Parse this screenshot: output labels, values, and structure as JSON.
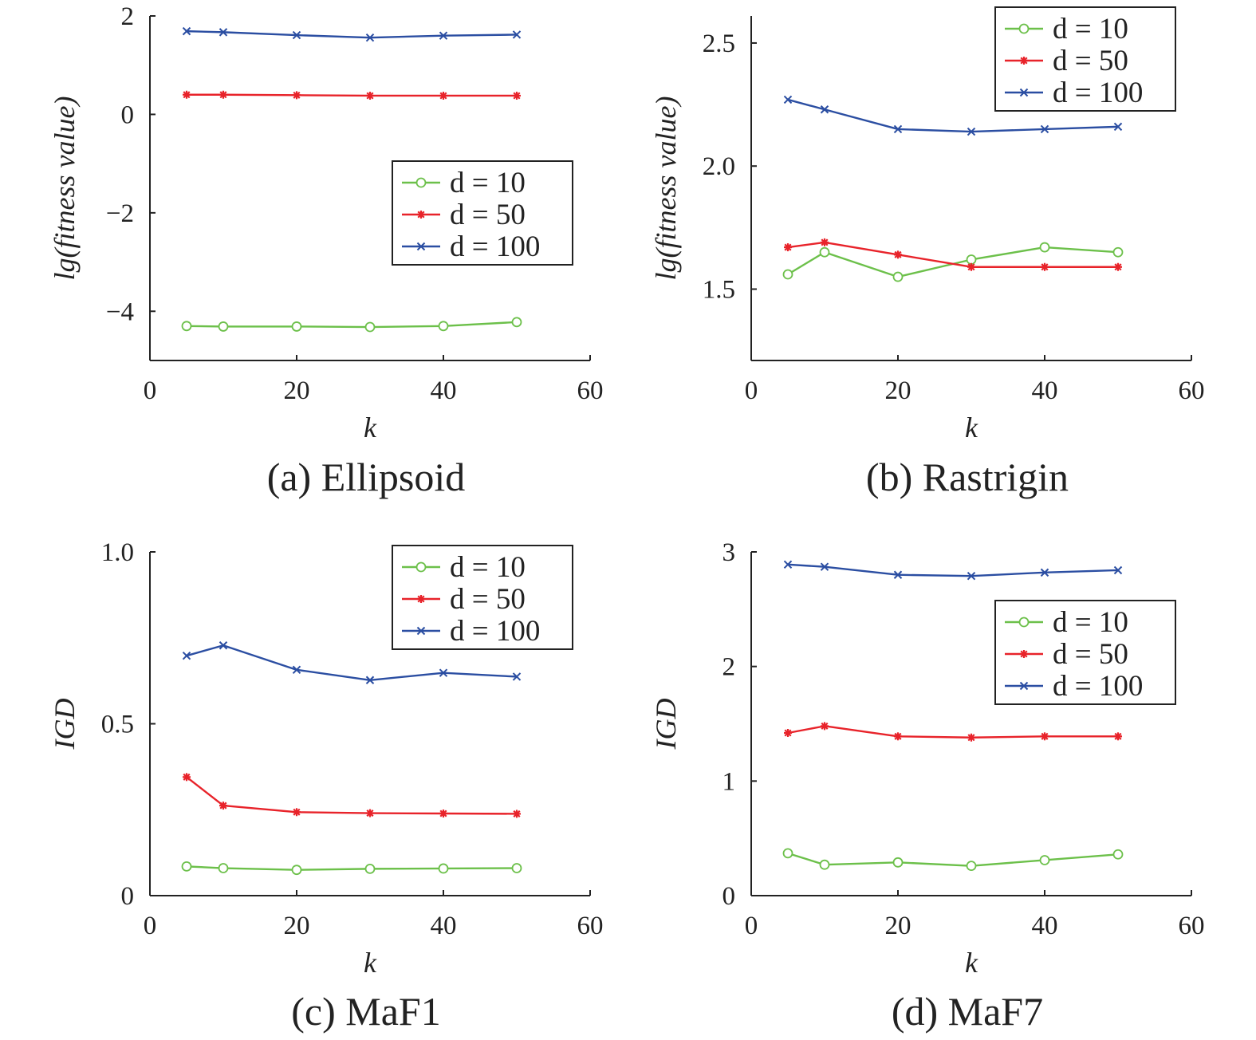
{
  "colors": {
    "d10": "#6cc04a",
    "d50": "#e8232a",
    "d100": "#2b4ea2",
    "axis": "#222222"
  },
  "chart_data": [
    {
      "type": "line",
      "caption": "(a) Ellipsoid",
      "xlabel": "k",
      "ylabel": "lg(fitness value)",
      "xlim": [
        0,
        60
      ],
      "ylim": [
        -5,
        2
      ],
      "xticks": [
        0,
        20,
        40,
        60
      ],
      "xtick_labels": [
        "0",
        "20",
        "40",
        "60"
      ],
      "yticks": [
        -4,
        -2,
        0,
        2
      ],
      "ytick_labels": [
        "−4",
        "−2",
        "0",
        "2"
      ],
      "legend_position": "center-right",
      "x": [
        5,
        10,
        20,
        30,
        40,
        50
      ],
      "series": [
        {
          "name": "d = 10",
          "marker": "circle",
          "values": [
            -4.3,
            -4.31,
            -4.31,
            -4.32,
            -4.3,
            -4.22
          ]
        },
        {
          "name": "d = 50",
          "marker": "star",
          "values": [
            0.4,
            0.4,
            0.39,
            0.38,
            0.38,
            0.38
          ]
        },
        {
          "name": "d = 100",
          "marker": "x",
          "values": [
            1.69,
            1.67,
            1.61,
            1.56,
            1.6,
            1.62
          ]
        }
      ]
    },
    {
      "type": "line",
      "caption": "(b) Rastrigin",
      "xlabel": "k",
      "ylabel": "lg(fitness value)",
      "xlim": [
        0,
        60
      ],
      "ylim": [
        1.21,
        2.61
      ],
      "xticks": [
        0,
        20,
        40,
        60
      ],
      "xtick_labels": [
        "0",
        "20",
        "40",
        "60"
      ],
      "yticks": [
        1.5,
        2.0,
        2.5
      ],
      "ytick_labels": [
        "1.5",
        "2.0",
        "2.5"
      ],
      "legend_position": "top-right",
      "x": [
        5,
        10,
        20,
        30,
        40,
        50
      ],
      "series": [
        {
          "name": "d = 10",
          "marker": "circle",
          "values": [
            1.56,
            1.65,
            1.55,
            1.62,
            1.67,
            1.65
          ]
        },
        {
          "name": "d = 50",
          "marker": "star",
          "values": [
            1.67,
            1.69,
            1.64,
            1.59,
            1.59,
            1.59
          ]
        },
        {
          "name": "d = 100",
          "marker": "x",
          "values": [
            2.27,
            2.23,
            2.15,
            2.14,
            2.15,
            2.16
          ]
        }
      ]
    },
    {
      "type": "line",
      "caption": "(c) MaF1",
      "xlabel": "k",
      "ylabel": "IGD",
      "xlim": [
        0,
        60
      ],
      "ylim": [
        0,
        1
      ],
      "xticks": [
        0,
        20,
        40,
        60
      ],
      "xtick_labels": [
        "0",
        "20",
        "40",
        "60"
      ],
      "yticks": [
        0,
        0.5,
        1.0
      ],
      "ytick_labels": [
        "0",
        "0.5",
        "1.0"
      ],
      "legend_position": "top-right",
      "x": [
        5,
        10,
        20,
        30,
        40,
        50
      ],
      "series": [
        {
          "name": "d = 10",
          "marker": "circle",
          "values": [
            0.085,
            0.08,
            0.075,
            0.078,
            0.079,
            0.08
          ]
        },
        {
          "name": "d = 50",
          "marker": "star",
          "values": [
            0.345,
            0.262,
            0.243,
            0.24,
            0.239,
            0.238
          ]
        },
        {
          "name": "d = 100",
          "marker": "x",
          "values": [
            0.698,
            0.728,
            0.657,
            0.627,
            0.648,
            0.637
          ]
        }
      ]
    },
    {
      "type": "line",
      "caption": "(d) MaF7",
      "xlabel": "k",
      "ylabel": "IGD",
      "xlim": [
        0,
        60
      ],
      "ylim": [
        0,
        3
      ],
      "xticks": [
        0,
        20,
        40,
        60
      ],
      "xtick_labels": [
        "0",
        "20",
        "40",
        "60"
      ],
      "yticks": [
        0,
        1,
        2,
        3
      ],
      "ytick_labels": [
        "0",
        "1",
        "2",
        "3"
      ],
      "legend_position": "center-right",
      "x": [
        5,
        10,
        20,
        30,
        40,
        50
      ],
      "series": [
        {
          "name": "d = 10",
          "marker": "circle",
          "values": [
            0.37,
            0.27,
            0.29,
            0.26,
            0.31,
            0.36
          ]
        },
        {
          "name": "d = 50",
          "marker": "star",
          "values": [
            1.42,
            1.48,
            1.39,
            1.38,
            1.39,
            1.39
          ]
        },
        {
          "name": "d = 100",
          "marker": "x",
          "values": [
            2.89,
            2.87,
            2.8,
            2.79,
            2.82,
            2.84
          ]
        }
      ]
    }
  ]
}
